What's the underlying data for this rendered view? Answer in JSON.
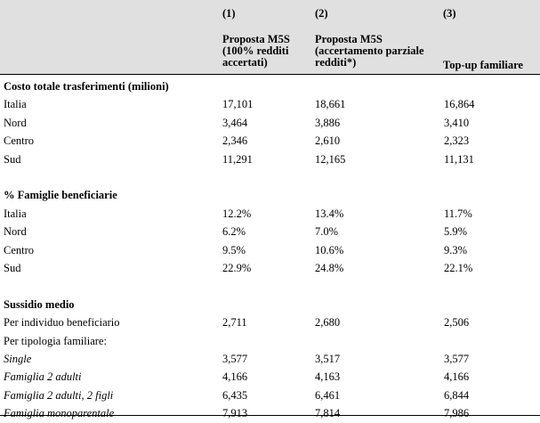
{
  "header": {
    "col1_num": "(1)",
    "col2_num": "(2)",
    "col3_num": "(3)",
    "col1_title_l1": "Proposta M5S",
    "col1_title_l2": "(100% redditi",
    "col1_title_l3": "accertati)",
    "col2_title_l1": "Proposta M5S",
    "col2_title_l2": "(accertamento parziale",
    "col2_title_l3": "redditi*)",
    "col3_title": "Top-up familiare"
  },
  "rows": [
    {
      "label": "Costo totale trasferimenti (milioni)",
      "v1": "",
      "v2": "",
      "v3": ""
    },
    {
      "label": "Italia",
      "v1": "17,101",
      "v2": "18,661",
      "v3": "16,864"
    },
    {
      "label": "Nord",
      "v1": "3,464",
      "v2": "3,886",
      "v3": "3,410"
    },
    {
      "label": "Centro",
      "v1": "2,346",
      "v2": "2,610",
      "v3": "2,323"
    },
    {
      "label": "Sud",
      "v1": "11,291",
      "v2": "12,165",
      "v3": "11,131"
    },
    {
      "label": "",
      "v1": "",
      "v2": "",
      "v3": ""
    },
    {
      "label": "% Famiglie beneficiarie",
      "v1": "",
      "v2": "",
      "v3": ""
    },
    {
      "label": "Italia",
      "v1": "12.2%",
      "v2": "13.4%",
      "v3": "11.7%"
    },
    {
      "label": "Nord",
      "v1": "6.2%",
      "v2": "7.0%",
      "v3": "5.9%"
    },
    {
      "label": "Centro",
      "v1": "9.5%",
      "v2": "10.6%",
      "v3": "9.3%"
    },
    {
      "label": "Sud",
      "v1": "22.9%",
      "v2": "24.8%",
      "v3": "22.1%"
    },
    {
      "label": "",
      "v1": "",
      "v2": "",
      "v3": ""
    },
    {
      "label": "Sussidio medio",
      "v1": "",
      "v2": "",
      "v3": ""
    },
    {
      "label": "Per individuo beneficiario",
      "v1": "2,711",
      "v2": "2,680",
      "v3": "2,506"
    },
    {
      "label": "Per tipologia familiare:",
      "v1": "",
      "v2": "",
      "v3": ""
    },
    {
      "label": "Single",
      "v1": "3,577",
      "v2": "3,517",
      "v3": "3,577"
    },
    {
      "label": "Famiglia 2 adulti",
      "v1": "4,166",
      "v2": "4,163",
      "v3": "4,166"
    },
    {
      "label": "Famiglia 2 adulti, 2 figli",
      "v1": "6,435",
      "v2": "6,461",
      "v3": "6,844"
    },
    {
      "label": "Famiglia monoparentale",
      "v1": "7,913",
      "v2": "7,814",
      "v3": "7,986"
    }
  ]
}
